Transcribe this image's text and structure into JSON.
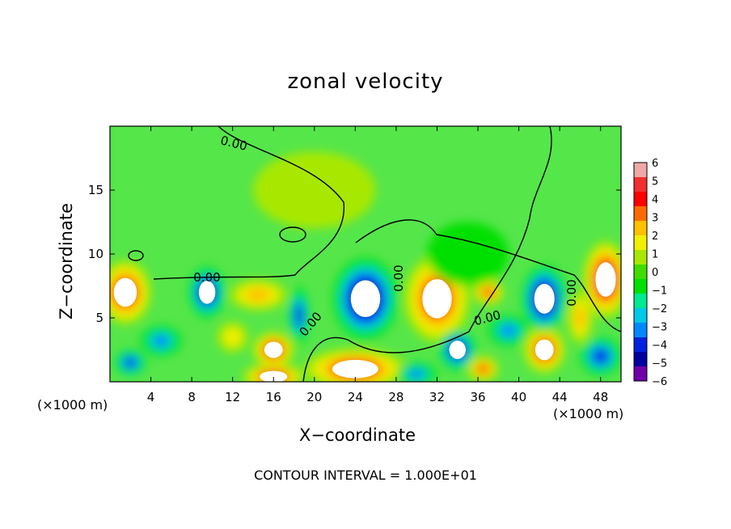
{
  "chart_data": {
    "type": "heatmap",
    "title": "zonal velocity",
    "xlabel": "X−coordinate",
    "ylabel": "Z−coordinate",
    "x_unit_left": "(×1000 m)",
    "x_unit_right": "(×1000 m)",
    "footer": "CONTOUR INTERVAL = 1.000E+01",
    "contour_label": "0.00",
    "xlim": [
      0,
      50
    ],
    "ylim": [
      0,
      20
    ],
    "x_ticks": [
      4,
      8,
      12,
      16,
      20,
      24,
      28,
      32,
      36,
      40,
      44,
      48
    ],
    "y_ticks": [
      5,
      10,
      15
    ],
    "colorbar": {
      "range": [
        -6,
        6
      ],
      "tick_labels": [
        "6",
        "5",
        "4",
        "3",
        "2",
        "1",
        "0",
        "−1",
        "−2",
        "−3",
        "−4",
        "−5",
        "−6"
      ],
      "colors": [
        "#f0a8a8",
        "#f03030",
        "#ff0000",
        "#ff6a00",
        "#ffc000",
        "#f0f000",
        "#a8e800",
        "#40dd00",
        "#00e000",
        "#00e890",
        "#00c8e8",
        "#0088ff",
        "#0020e0",
        "#0000a0",
        "#7000a8"
      ]
    },
    "features": [
      {
        "cx": 1.5,
        "cy": 7,
        "rx": 2.5,
        "ry": 2.5,
        "v": 5
      },
      {
        "cx": 9.5,
        "cy": 7,
        "rx": 1.8,
        "ry": 2,
        "v": -5
      },
      {
        "cx": 5,
        "cy": 3.2,
        "rx": 2,
        "ry": 1.2,
        "v": -3
      },
      {
        "cx": 2,
        "cy": 1.5,
        "rx": 1.5,
        "ry": 1,
        "v": -4
      },
      {
        "cx": 14.5,
        "cy": 6.8,
        "rx": 2.8,
        "ry": 1.2,
        "v": 3
      },
      {
        "cx": 16,
        "cy": 2.5,
        "rx": 2,
        "ry": 1.4,
        "v": 5
      },
      {
        "cx": 12,
        "cy": 3.5,
        "rx": 1.5,
        "ry": 1.2,
        "v": 2
      },
      {
        "cx": 18.5,
        "cy": 5.2,
        "rx": 1,
        "ry": 2.2,
        "v": -4
      },
      {
        "cx": 16,
        "cy": 0.4,
        "rx": 3,
        "ry": 1,
        "v": 5
      },
      {
        "cx": 25,
        "cy": 6.5,
        "rx": 3.2,
        "ry": 3.2,
        "v": -6
      },
      {
        "cx": 24,
        "cy": 1,
        "rx": 5,
        "ry": 1.6,
        "v": 5
      },
      {
        "cx": 32,
        "cy": 6.5,
        "rx": 3.2,
        "ry": 3.4,
        "v": 5
      },
      {
        "cx": 37,
        "cy": 7,
        "rx": 1.5,
        "ry": 1,
        "v": 4
      },
      {
        "cx": 34,
        "cy": 2.5,
        "rx": 1.8,
        "ry": 1.6,
        "v": -5
      },
      {
        "cx": 36.5,
        "cy": 1,
        "rx": 1.5,
        "ry": 1,
        "v": 4
      },
      {
        "cx": 39,
        "cy": 4,
        "rx": 2,
        "ry": 1.2,
        "v": -3
      },
      {
        "cx": 42.5,
        "cy": 2.5,
        "rx": 2,
        "ry": 1.8,
        "v": 5
      },
      {
        "cx": 42.5,
        "cy": 6.5,
        "rx": 2.2,
        "ry": 2.6,
        "v": -6
      },
      {
        "cx": 48.5,
        "cy": 8,
        "rx": 2.2,
        "ry": 3,
        "v": 6
      },
      {
        "cx": 48,
        "cy": 2,
        "rx": 2,
        "ry": 1.5,
        "v": -4
      },
      {
        "cx": 30,
        "cy": 0.6,
        "rx": 2,
        "ry": 0.9,
        "v": -3
      },
      {
        "cx": 46,
        "cy": 5,
        "rx": 1.2,
        "ry": 2,
        "v": 3
      },
      {
        "cx": 35,
        "cy": 10,
        "rx": 4,
        "ry": 2.5,
        "v": -1
      },
      {
        "cx": 20,
        "cy": 15,
        "rx": 6,
        "ry": 3,
        "v": 1
      }
    ]
  }
}
